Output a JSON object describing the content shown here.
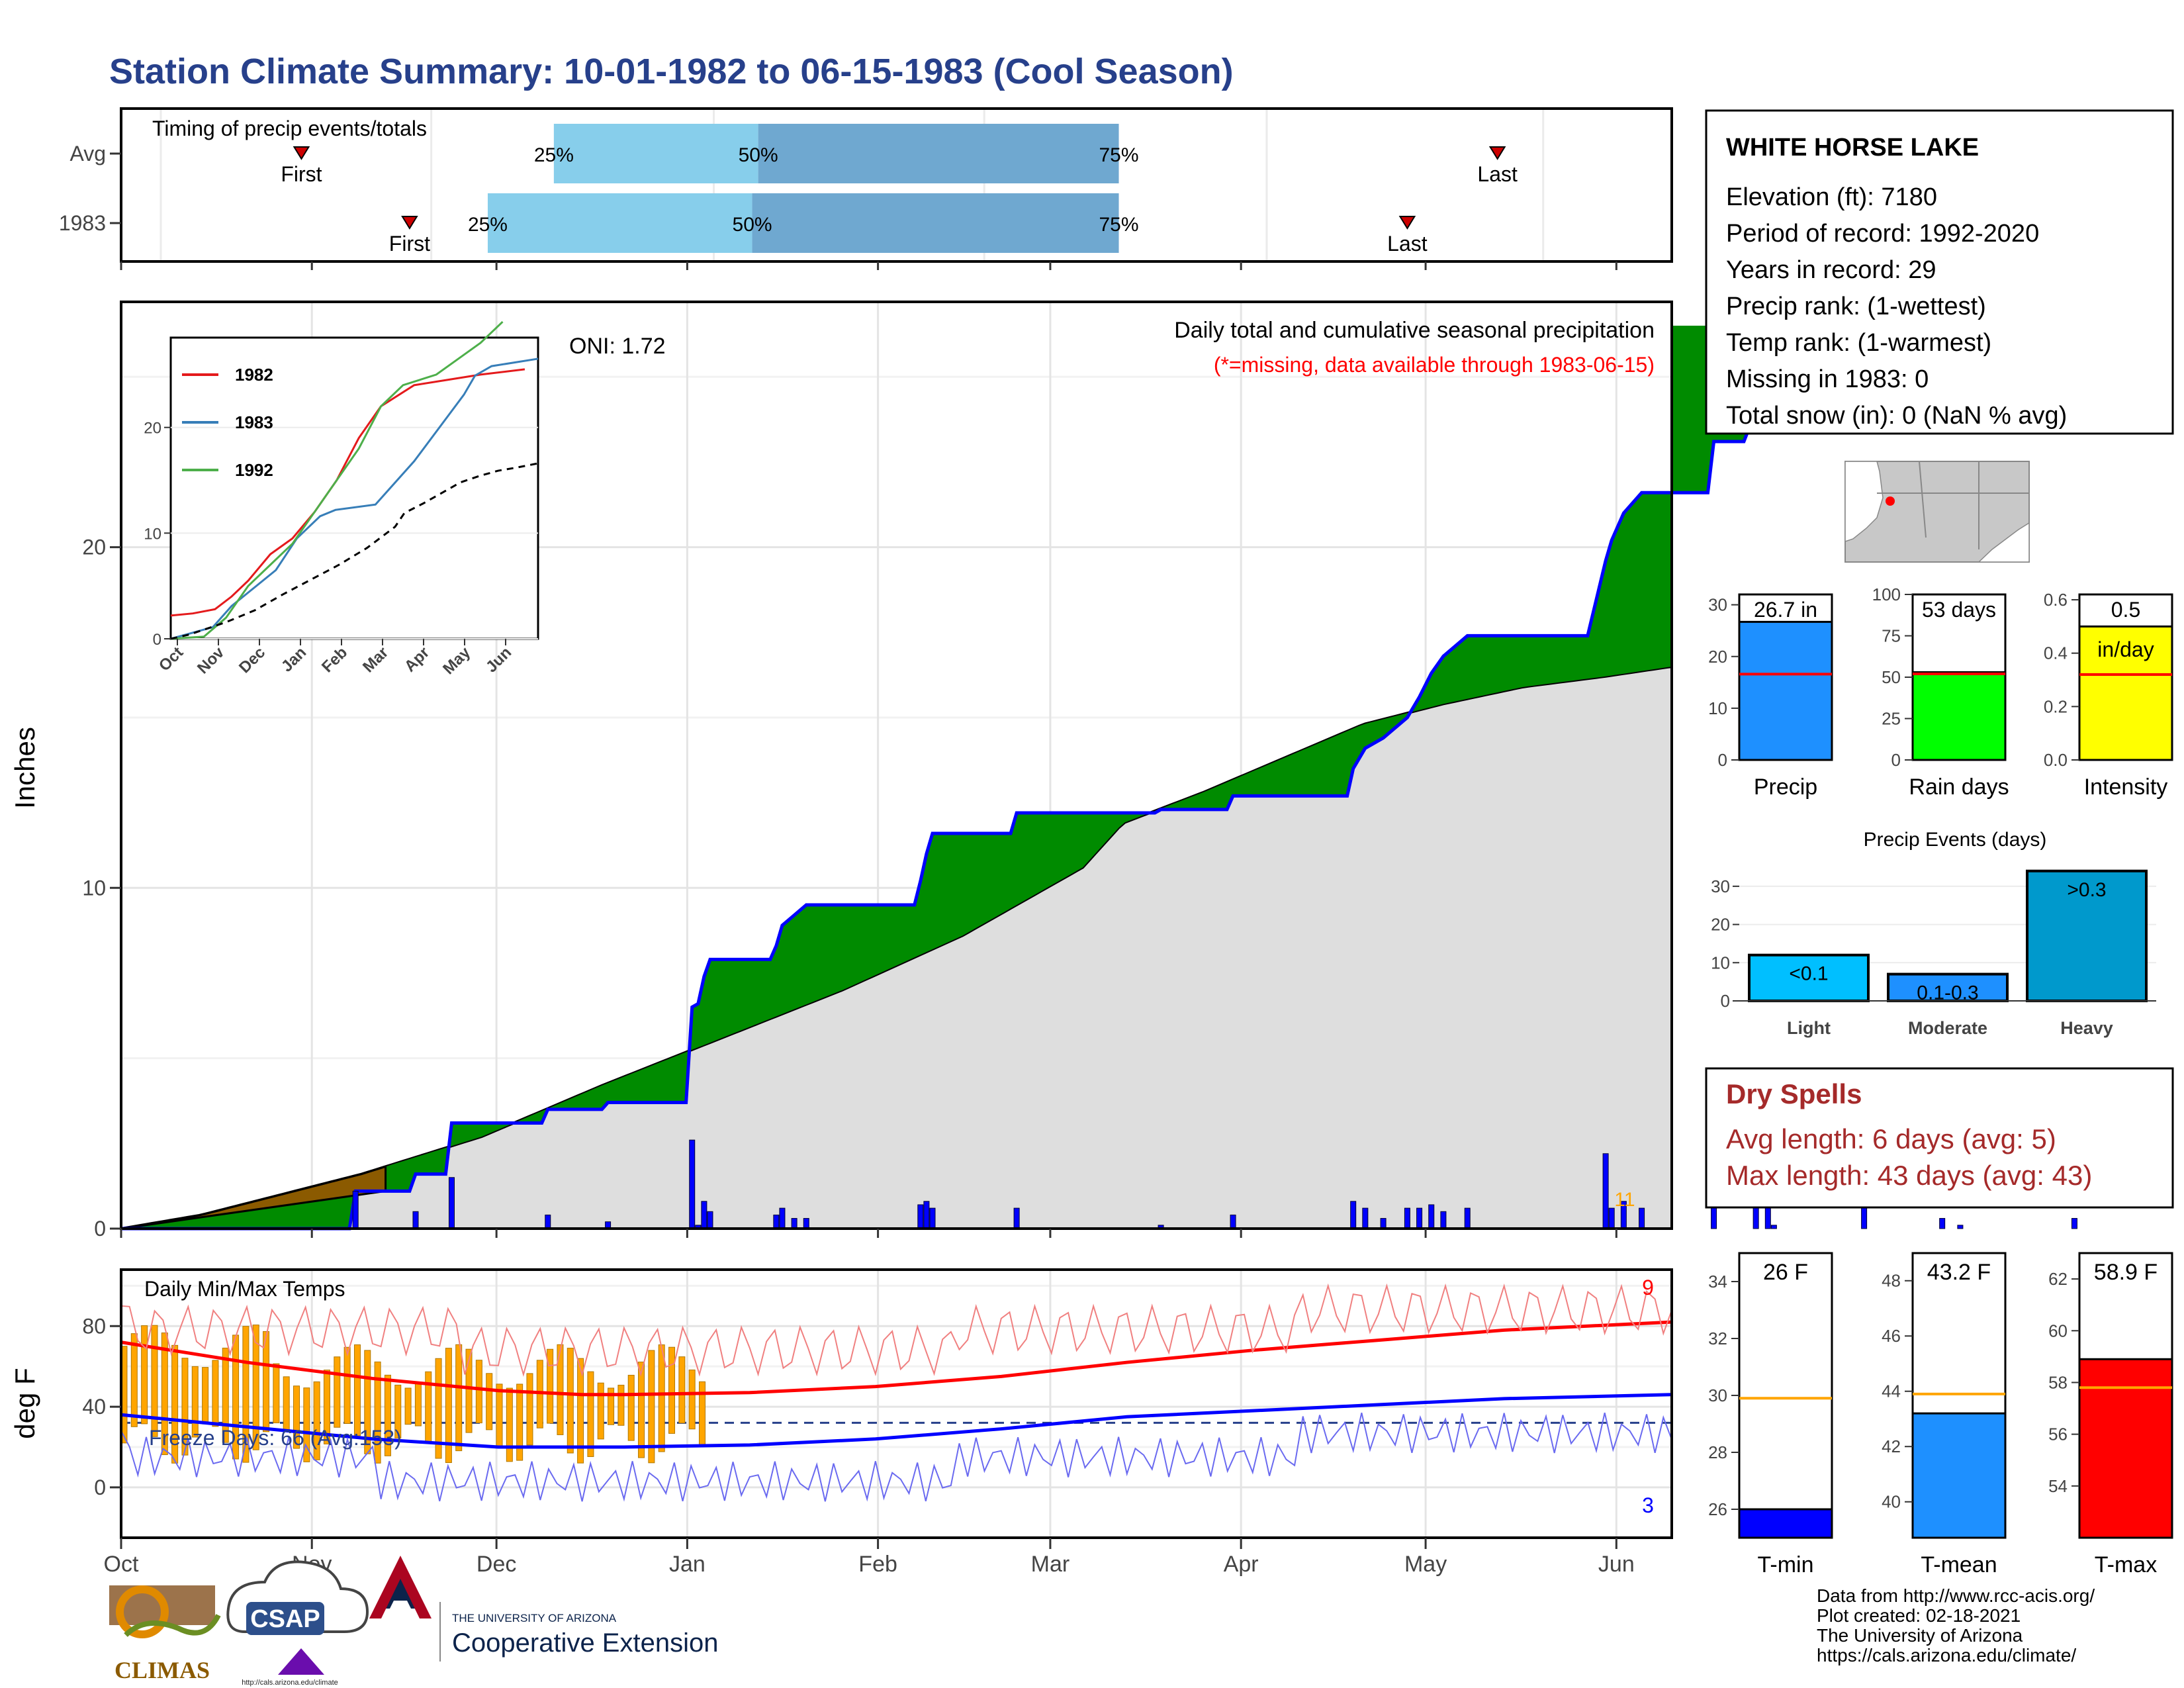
{
  "title": "Station Climate Summary: 10-01-1982 to 06-15-1983 (Cool Season)",
  "colors": {
    "title": "#27408b",
    "green": "#008b00",
    "brown": "#8b5a00",
    "grey": "#dedede",
    "blue": "#0000ff",
    "orange": "#ffa500",
    "red": "#ff0000",
    "light_blue": "#87ceeb",
    "mid_blue": "#6fa8d0",
    "dry": "#a52a2a"
  },
  "timing": {
    "title": "Timing of precip events/totals",
    "rows": [
      {
        "label": "Avg",
        "q25": "25%",
        "q50": "50%",
        "q75": "75%",
        "first": "First",
        "last": "Last",
        "first_day": 30,
        "q25_day": 72,
        "q50_day": 106,
        "q75_day": 166,
        "last_day": 229
      },
      {
        "label": "1983",
        "q25": "25%",
        "q50": "50%",
        "q75": "75%",
        "first": "First",
        "last": "Last",
        "first_day": 48,
        "q25_day": 61,
        "q50_day": 105,
        "q75_day": 166,
        "last_day": 214
      }
    ]
  },
  "precip_panel": {
    "ylabel": "Inches",
    "title": "Daily total and cumulative seasonal precipitation",
    "subtitle": "(*=missing, data available through 1983-06-15)",
    "oni": "ONI: 1.72",
    "count_label": "11",
    "yticks": [
      "0",
      "10",
      "20"
    ]
  },
  "inset": {
    "legend": [
      "1982",
      "1983",
      "1992"
    ],
    "yticks": [
      "0",
      "10",
      "20"
    ],
    "xticks": [
      "Oct",
      "Nov",
      "Dec",
      "Jan",
      "Feb",
      "Mar",
      "Apr",
      "May",
      "Jun"
    ]
  },
  "temp_panel": {
    "title": "Daily Min/Max Temps",
    "ylabel": "deg F",
    "freeze": "Freeze Days: 66 (Avg:153)",
    "high_count": "9",
    "low_count": "3",
    "yticks": [
      "0",
      "40",
      "80"
    ]
  },
  "x_months": [
    "Oct",
    "Nov",
    "Dec",
    "Jan",
    "Feb",
    "Mar",
    "Apr",
    "May",
    "Jun"
  ],
  "station": {
    "name": "WHITE HORSE LAKE",
    "lines": [
      "Elevation (ft): 7180",
      "Period of record: 1992-2020",
      "Years in record: 29",
      "Precip rank:  (1-wettest)",
      "Temp rank:  (1-warmest)",
      "Missing in 1983: 0",
      "Total snow (in): 0 (NaN % avg)"
    ]
  },
  "bars": [
    {
      "label": "Precip",
      "value_text": "26.7 in",
      "value": 26.7,
      "avg": 16.6,
      "ymax": 32,
      "yticks": [
        "0",
        "10",
        "20",
        "30"
      ],
      "color": "#1e90ff"
    },
    {
      "label": "Rain days",
      "value_text": "53 days",
      "value": 53,
      "avg": 52,
      "ymax": 100,
      "yticks": [
        "0",
        "25",
        "50",
        "75",
        "100"
      ],
      "color": "#00ff00"
    },
    {
      "label": "Intensity",
      "value_text": "0.5",
      "value2_text": "in/day",
      "value": 0.5,
      "avg": 0.32,
      "ymax": 0.62,
      "yticks": [
        "0.0",
        "0.2",
        "0.4",
        "0.6"
      ],
      "color": "#ffff00"
    }
  ],
  "events": {
    "title": "Precip Events (days)",
    "categories": [
      "Light",
      "Moderate",
      "Heavy"
    ],
    "labels": [
      "<0.1",
      "0.1-0.3",
      ">0.3"
    ],
    "values": [
      12,
      7,
      34
    ],
    "yticks": [
      "0",
      "10",
      "20",
      "30"
    ],
    "colors": [
      "#00bfff",
      "#1e90ff",
      "#0099cc"
    ]
  },
  "dry": {
    "title": "Dry Spells",
    "avg": "Avg length: 6 days (avg: 5)",
    "max": "Max length: 43 days (avg: 43)"
  },
  "temp_bars": [
    {
      "label": "T-min",
      "value_text": "26 F",
      "value": 26,
      "avg": 29.9,
      "ylim": [
        25,
        35
      ],
      "yticks": [
        "26",
        "28",
        "30",
        "32",
        "34"
      ],
      "color": "#0000ff"
    },
    {
      "label": "T-mean",
      "value_text": "43.2 F",
      "value": 43.2,
      "avg": 43.9,
      "ylim": [
        38.7,
        49
      ],
      "yticks": [
        "40",
        "42",
        "44",
        "46",
        "48"
      ],
      "color": "#1e90ff"
    },
    {
      "label": "T-max",
      "value_text": "58.9 F",
      "value": 58.9,
      "avg": 57.8,
      "ylim": [
        52,
        63
      ],
      "yticks": [
        "54",
        "56",
        "58",
        "60",
        "62"
      ],
      "color": "#ff0000"
    }
  ],
  "credits": [
    "Data from http://www.rcc-acis.org/",
    "Plot created: 02-18-2021",
    "The University of Arizona",
    "https://cals.arizona.edu/climate/"
  ],
  "logos": {
    "climas": "CLIMAS",
    "csap": "CSAP",
    "ua_small": "THE UNIVERSITY OF ARIZONA",
    "ua_big": "Cooperative Extension",
    "csap_url": "http://cals.arizona.edu/climate"
  },
  "chart_data": [
    {
      "type": "area",
      "title": "Daily total and cumulative seasonal precipitation",
      "ylabel": "Inches",
      "x_range": [
        "1982-10-01",
        "1983-06-15"
      ],
      "ylim": [
        0,
        27
      ],
      "series": [
        {
          "name": "cumulative precip 1983 (day, inches)",
          "points": [
            [
              0,
              0
            ],
            [
              38,
              0
            ],
            [
              39,
              1.1
            ],
            [
              48,
              1.1
            ],
            [
              49,
              1.6
            ],
            [
              54,
              1.6
            ],
            [
              55,
              3.1
            ],
            [
              70,
              3.1
            ],
            [
              71,
              3.5
            ],
            [
              80,
              3.5
            ],
            [
              81,
              3.7
            ],
            [
              94,
              3.7
            ],
            [
              95,
              6.5
            ],
            [
              96,
              6.6
            ],
            [
              97,
              7.4
            ],
            [
              98,
              7.9
            ],
            [
              108,
              7.9
            ],
            [
              109,
              8.3
            ],
            [
              110,
              8.9
            ],
            [
              112,
              9.2
            ],
            [
              114,
              9.5
            ],
            [
              132,
              9.5
            ],
            [
              133,
              10.2
            ],
            [
              134,
              11.0
            ],
            [
              135,
              11.6
            ],
            [
              148,
              11.6
            ],
            [
              149,
              12.2
            ],
            [
              172,
              12.2
            ],
            [
              173,
              12.3
            ],
            [
              184,
              12.3
            ],
            [
              185,
              12.7
            ],
            [
              204,
              12.7
            ],
            [
              205,
              13.5
            ],
            [
              207,
              14.1
            ],
            [
              210,
              14.4
            ],
            [
              214,
              15.0
            ],
            [
              216,
              15.6
            ],
            [
              218,
              16.3
            ],
            [
              220,
              16.8
            ],
            [
              224,
              17.4
            ],
            [
              244,
              17.4
            ],
            [
              247,
              19.6
            ],
            [
              248,
              20.2
            ],
            [
              250,
              21.0
            ],
            [
              253,
              21.6
            ],
            [
              264,
              21.6
            ],
            [
              265,
              23.1
            ],
            [
              270,
              23.1
            ],
            [
              272,
              24.0
            ],
            [
              274,
              24.8
            ],
            [
              275,
              24.9
            ],
            [
              289,
              24.9
            ],
            [
              290,
              25.8
            ],
            [
              302,
              25.8
            ],
            [
              303,
              26.1
            ],
            [
              306,
              26.2
            ],
            [
              324,
              26.2
            ],
            [
              325,
              26.5
            ],
            [
              331,
              26.5
            ],
            [
              332,
              26.5
            ]
          ]
        },
        {
          "name": "average cumulative precip (day, inches)",
          "points": [
            [
              0,
              0
            ],
            [
              20,
              0.4
            ],
            [
              60,
              1.6
            ],
            [
              90,
              2.7
            ],
            [
              120,
              4.2
            ],
            [
              150,
              5.6
            ],
            [
              180,
              7.0
            ],
            [
              210,
              8.6
            ],
            [
              240,
              10.6
            ],
            [
              250,
              11.9
            ],
            [
              270,
              12.8
            ],
            [
              290,
              13.8
            ],
            [
              310,
              14.8
            ],
            [
              330,
              15.4
            ],
            [
              350,
              15.9
            ],
            [
              370,
              16.2
            ],
            [
              393,
              16.6
            ]
          ]
        }
      ]
    },
    {
      "type": "line",
      "title": "Daily Min/Max Temps",
      "ylabel": "deg F",
      "ylim": [
        -25,
        105
      ],
      "series": [
        {
          "name": "avg max",
          "points": [
            [
              0,
              72
            ],
            [
              30,
              62
            ],
            [
              60,
              54
            ],
            [
              90,
              48
            ],
            [
              110,
              46
            ],
            [
              120,
              46
            ],
            [
              150,
              47
            ],
            [
              180,
              50
            ],
            [
              210,
              55
            ],
            [
              240,
              62
            ],
            [
              270,
              68
            ],
            [
              300,
              73
            ],
            [
              330,
              78
            ],
            [
              370,
              82
            ]
          ]
        },
        {
          "name": "avg min",
          "points": [
            [
              0,
              36
            ],
            [
              30,
              30
            ],
            [
              60,
              24
            ],
            [
              90,
              20
            ],
            [
              120,
              20
            ],
            [
              150,
              21
            ],
            [
              180,
              24
            ],
            [
              210,
              29
            ],
            [
              240,
              35
            ],
            [
              270,
              38
            ],
            [
              300,
              41
            ],
            [
              330,
              44
            ],
            [
              370,
              46
            ]
          ]
        }
      ]
    },
    {
      "type": "line",
      "title": "inset cumulative precipitation",
      "series": [
        {
          "name": "1982",
          "points": [
            [
              0,
              2.2
            ],
            [
              20,
              2.4
            ],
            [
              40,
              2.8
            ],
            [
              55,
              4.0
            ],
            [
              70,
              5.5
            ],
            [
              90,
              8
            ],
            [
              110,
              9.5
            ],
            [
              130,
              12
            ],
            [
              150,
              15
            ],
            [
              170,
              19
            ],
            [
              190,
              22
            ],
            [
              220,
              24
            ],
            [
              250,
              24.5
            ],
            [
              280,
              25
            ],
            [
              320,
              25.5
            ]
          ]
        },
        {
          "name": "1983",
          "points": [
            [
              0,
              0
            ],
            [
              38,
              1.1
            ],
            [
              55,
              3.1
            ],
            [
              95,
              6.5
            ],
            [
              114,
              9.5
            ],
            [
              135,
              11.6
            ],
            [
              149,
              12.2
            ],
            [
              185,
              12.7
            ],
            [
              220,
              16.8
            ],
            [
              250,
              21
            ],
            [
              265,
              23.1
            ],
            [
              275,
              24.9
            ],
            [
              290,
              25.8
            ],
            [
              332,
              26.5
            ]
          ]
        },
        {
          "name": "1992",
          "points": [
            [
              0,
              0
            ],
            [
              30,
              0.2
            ],
            [
              50,
              2
            ],
            [
              70,
              5
            ],
            [
              90,
              7
            ],
            [
              110,
              9
            ],
            [
              130,
              12
            ],
            [
              150,
              15
            ],
            [
              170,
              18
            ],
            [
              190,
              22
            ],
            [
              210,
              24
            ],
            [
              240,
              25
            ],
            [
              260,
              26.5
            ],
            [
              280,
              28
            ],
            [
              300,
              30
            ]
          ]
        }
      ]
    }
  ]
}
